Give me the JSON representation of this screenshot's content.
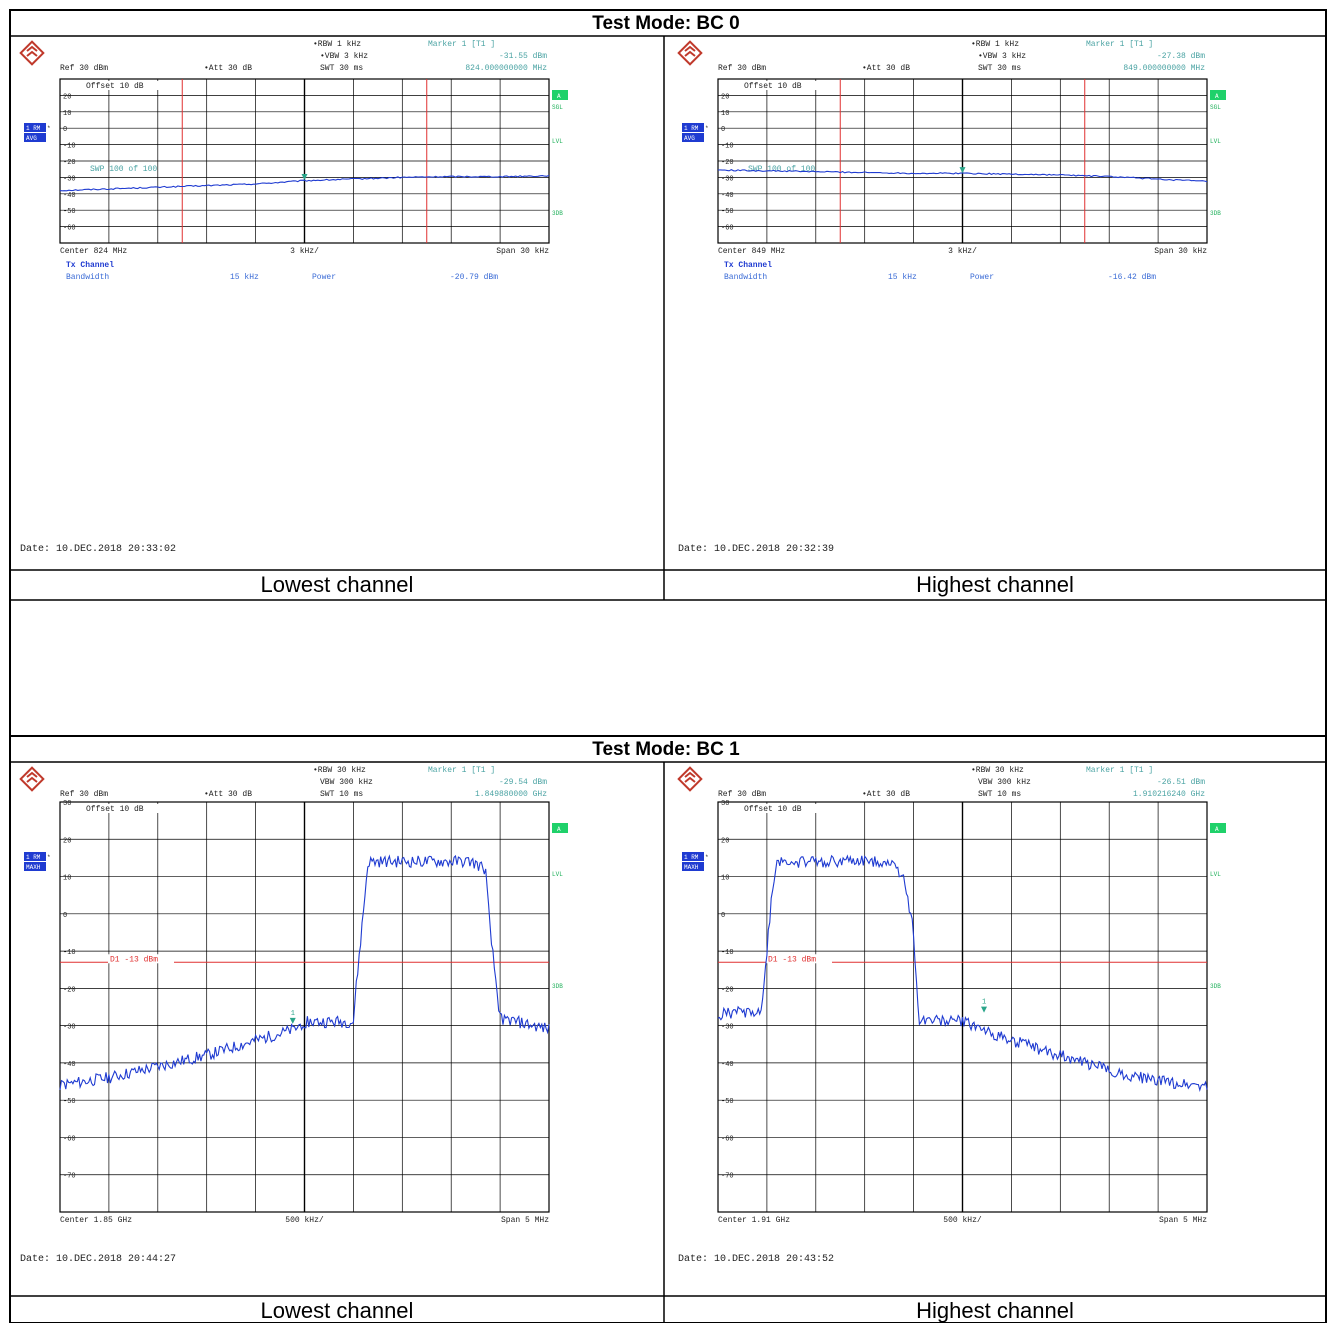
{
  "sections": [
    {
      "title": "Test Mode: BC 0",
      "gap_after": true,
      "panels": [
        {
          "caption": "Lowest channel",
          "kind": "channel-power",
          "header": {
            "rbw": "RBW 1 kHz",
            "vbw": "VBW 3 kHz",
            "swt": "SWT 30 ms",
            "marker_label": "Marker 1 [T1 ]",
            "marker_level": "-31.55 dBm",
            "marker_freq": "824.000000000 MHz",
            "ref": "Ref  30 dBm",
            "att": "Att  30 dB",
            "offset": "Offset  10 dB",
            "swp": "SWP   100 of   100"
          },
          "badges": {
            "trace": "1 RM",
            "detector": "AVG",
            "right": [
              "A",
              "SGL",
              "LVL",
              "3DB"
            ]
          },
          "footer": {
            "center": "Center 824 MHz",
            "div": "3 kHz/",
            "span": "Span 30 kHz"
          },
          "results": {
            "heading": "Tx Channel",
            "bw_label": "Bandwidth",
            "bw_value": "15 kHz",
            "power_label": "Power",
            "power_value": "-20.79 dBm"
          },
          "date": "Date: 10.DEC.2018  20:33:02",
          "chart_data": {
            "type": "line",
            "xlim": [
              -15,
              15
            ],
            "xunit": "kHz offset from center",
            "ylim": [
              -70,
              30
            ],
            "yticks": [
              "20",
              "10",
              "0",
              "-10",
              "-20",
              "-30",
              "-40",
              "-50",
              "-60"
            ],
            "red_vlines": [
              -7.5,
              7.5
            ],
            "marker": {
              "x": 0,
              "y": -31.55
            },
            "series": {
              "x": [
                -15,
                -12,
                -9,
                -6,
                -3,
                0,
                3,
                6,
                9,
                12,
                15
              ],
              "y": [
                -38,
                -37,
                -36,
                -35,
                -34,
                -32,
                -31,
                -30,
                -29.5,
                -29.5,
                -29
              ]
            }
          }
        },
        {
          "caption": "Highest channel",
          "kind": "channel-power",
          "header": {
            "rbw": "RBW 1 kHz",
            "vbw": "VBW 3 kHz",
            "swt": "SWT 30 ms",
            "marker_label": "Marker 1 [T1 ]",
            "marker_level": "-27.38 dBm",
            "marker_freq": "849.000000000 MHz",
            "ref": "Ref  30 dBm",
            "att": "Att  30 dB",
            "offset": "Offset  10 dB",
            "swp": "SWP   100 of   100"
          },
          "badges": {
            "trace": "1 RM",
            "detector": "AVG",
            "right": [
              "A",
              "SGL",
              "LVL",
              "3DB"
            ]
          },
          "footer": {
            "center": "Center 849 MHz",
            "div": "3 kHz/",
            "span": "Span 30 kHz"
          },
          "results": {
            "heading": "Tx Channel",
            "bw_label": "Bandwidth",
            "bw_value": "15 kHz",
            "power_label": "Power",
            "power_value": "-16.42 dBm"
          },
          "date": "Date: 10.DEC.2018  20:32:39",
          "chart_data": {
            "type": "line",
            "xlim": [
              -15,
              15
            ],
            "xunit": "kHz offset from center",
            "ylim": [
              -70,
              30
            ],
            "yticks": [
              "20",
              "10",
              "0",
              "-10",
              "-20",
              "-30",
              "-40",
              "-50",
              "-60"
            ],
            "red_vlines": [
              -7.5,
              7.5
            ],
            "marker": {
              "x": 0,
              "y": -27.38
            },
            "series": {
              "x": [
                -15,
                -12,
                -9,
                -6,
                -3,
                0,
                3,
                6,
                9,
                12,
                15
              ],
              "y": [
                -25.5,
                -26,
                -26.5,
                -27,
                -27.5,
                -27.5,
                -28,
                -28.5,
                -29.5,
                -31,
                -32.5
              ]
            }
          }
        }
      ]
    },
    {
      "title": "Test Mode: BC 1",
      "gap_after": false,
      "panels": [
        {
          "caption": "Lowest channel",
          "kind": "band-edge",
          "header": {
            "rbw": "RBW 30 kHz",
            "vbw": "VBW 300 kHz",
            "swt": "SWT 10 ms",
            "marker_label": "Marker 1 [T1 ]",
            "marker_level": "-29.54 dBm",
            "marker_freq": "1.849880000 GHz",
            "ref": "Ref  30 dBm",
            "att": "Att  30 dB",
            "offset": "Offset  10 dB",
            "swp": "",
            "dline": "D1  -13  dBm"
          },
          "badges": {
            "trace": "1 RM",
            "detector": "MAXH",
            "right": [
              "A",
              "LVL",
              "3DB"
            ]
          },
          "footer": {
            "center": "Center 1.85 GHz",
            "div": "500 kHz/",
            "span": "Span 5 MHz"
          },
          "results": null,
          "date": "Date: 10.DEC.2018  20:44:27",
          "chart_data": {
            "type": "line",
            "xlim": [
              -2.5,
              2.5
            ],
            "xunit": "MHz offset from center",
            "ylim": [
              -80,
              30
            ],
            "yticks": [
              "30",
              "20",
              "10",
              "0",
              "-10",
              "-20",
              "-30",
              "-40",
              "-50",
              "-60",
              "-70"
            ],
            "hline": -13,
            "marker": {
              "x": -0.12,
              "y": -29.54
            },
            "series": {
              "x": [
                -2.5,
                -2.0,
                -1.5,
                -1.0,
                -0.5,
                -0.1,
                0.0,
                0.5,
                0.52,
                0.6,
                0.65,
                1.7,
                1.85,
                1.9,
                2.0,
                2.5
              ],
              "y": [
                -46,
                -44,
                -41,
                -38,
                -34,
                -31,
                -29,
                -29,
                -22,
                0,
                14,
                14,
                12,
                -5,
                -28,
                -31
              ]
            }
          }
        },
        {
          "caption": "Highest channel",
          "kind": "band-edge",
          "header": {
            "rbw": "RBW 30 kHz",
            "vbw": "VBW 300 kHz",
            "swt": "SWT 10 ms",
            "marker_label": "Marker 1 [T1 ]",
            "marker_level": "-26.51 dBm",
            "marker_freq": "1.910216240 GHz",
            "ref": "Ref  30 dBm",
            "att": "Att  30 dB",
            "offset": "Offset  10 dB",
            "swp": "",
            "dline": "D1  -13  dBm"
          },
          "badges": {
            "trace": "1 RM",
            "detector": "MAXH",
            "right": [
              "A",
              "LVL",
              "3DB"
            ]
          },
          "footer": {
            "center": "Center 1.91 GHz",
            "div": "500 kHz/",
            "span": "Span 5 MHz"
          },
          "results": null,
          "date": "Date: 10.DEC.2018  20:43:52",
          "chart_data": {
            "type": "line",
            "xlim": [
              -2.5,
              2.5
            ],
            "xunit": "MHz offset from center",
            "ylim": [
              -80,
              30
            ],
            "yticks": [
              "30",
              "20",
              "10",
              "0",
              "-10",
              "-20",
              "-30",
              "-40",
              "-50",
              "-60",
              "-70"
            ],
            "hline": -13,
            "marker": {
              "x": 0.22,
              "y": -26.51
            },
            "series": {
              "x": [
                -2.5,
                -2.05,
                -2.0,
                -1.95,
                -1.9,
                -0.75,
                -0.6,
                -0.5,
                -0.45,
                0.0,
                0.5,
                1.0,
                1.5,
                2.0,
                2.5
              ],
              "y": [
                -27,
                -26,
                -10,
                5,
                14,
                14,
                10,
                -5,
                -28,
                -29,
                -34,
                -38,
                -42,
                -45,
                -46
              ]
            }
          }
        }
      ]
    }
  ]
}
